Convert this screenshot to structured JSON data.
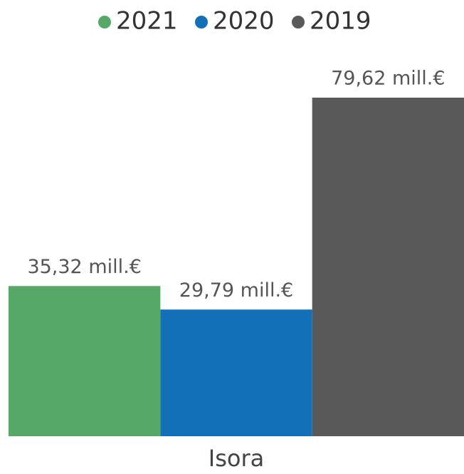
{
  "chart_data": {
    "type": "bar",
    "categories": [
      "Isora"
    ],
    "series": [
      {
        "name": "2021",
        "color": "#55a868",
        "values": [
          35.32
        ],
        "value_labels": [
          "35,32 mill.€"
        ]
      },
      {
        "name": "2020",
        "color": "#1170b8",
        "values": [
          29.79
        ],
        "value_labels": [
          "29,79 mill.€"
        ]
      },
      {
        "name": "2019",
        "color": "#595959",
        "values": [
          79.62
        ],
        "value_labels": [
          "79,62 mill.€"
        ]
      }
    ],
    "legend": "top"
  }
}
